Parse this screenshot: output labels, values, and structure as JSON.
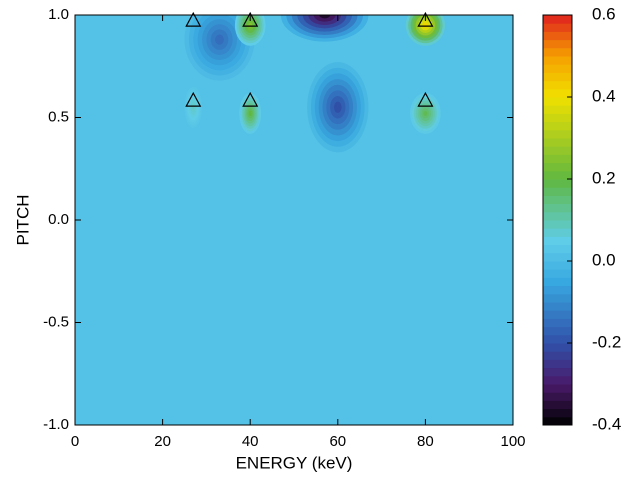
{
  "chart_data": {
    "type": "contour",
    "xlabel": "ENERGY (keV)",
    "ylabel": "PITCH",
    "xlim": [
      0,
      100
    ],
    "xticks": [
      0,
      20,
      40,
      60,
      80,
      100
    ],
    "ylim": [
      -1,
      1
    ],
    "yticks": [
      {
        "value": -1,
        "label": "-1.0"
      },
      -0.5,
      {
        "value": 0,
        "label": "0.0"
      },
      0.5,
      {
        "value": 1,
        "label": "1.0"
      }
    ],
    "base_value": 0.02,
    "blobs": [
      {
        "x": 33,
        "y": 0.88,
        "rx": 8,
        "ry": 0.2,
        "value": -0.15
      },
      {
        "x": 57,
        "y": 1.0,
        "rx": 10,
        "ry": 0.13,
        "value": -0.36
      },
      {
        "x": 60,
        "y": 0.55,
        "rx": 7,
        "ry": 0.22,
        "value": -0.2
      },
      {
        "x": 40,
        "y": 0.95,
        "rx": 3.5,
        "ry": 0.1,
        "value": 0.25
      },
      {
        "x": 40,
        "y": 0.52,
        "rx": 2.5,
        "ry": 0.1,
        "value": 0.2
      },
      {
        "x": 80,
        "y": 0.95,
        "rx": 4.5,
        "ry": 0.1,
        "value": 0.42
      },
      {
        "x": 80,
        "y": 0.52,
        "rx": 3.5,
        "ry": 0.1,
        "value": 0.18
      },
      {
        "x": 27,
        "y": 0.55,
        "rx": 2,
        "ry": 0.1,
        "value": 0.08
      }
    ],
    "markers": {
      "x": [
        27,
        40,
        80,
        27,
        40,
        80
      ],
      "y": [
        0.97,
        0.97,
        0.97,
        0.58,
        0.58,
        0.58
      ]
    },
    "clim": [
      -0.4,
      0.6
    ],
    "cticks": [
      {
        "value": -0.4,
        "label": "-0.4"
      },
      -0.2,
      {
        "value": 0,
        "label": "0.0"
      },
      0.2,
      0.4,
      0.6
    ],
    "colormap": [
      {
        "value": -0.4,
        "color": "#000000"
      },
      {
        "value": -0.3,
        "color": "#4a1a6a"
      },
      {
        "value": -0.2,
        "color": "#3050a8"
      },
      {
        "value": -0.05,
        "color": "#38a8e0"
      },
      {
        "value": 0.05,
        "color": "#60cde8"
      },
      {
        "value": 0.2,
        "color": "#60b840"
      },
      {
        "value": 0.4,
        "color": "#f0e000"
      },
      {
        "value": 0.5,
        "color": "#f5a000"
      },
      {
        "value": 0.6,
        "color": "#e02020"
      }
    ]
  }
}
